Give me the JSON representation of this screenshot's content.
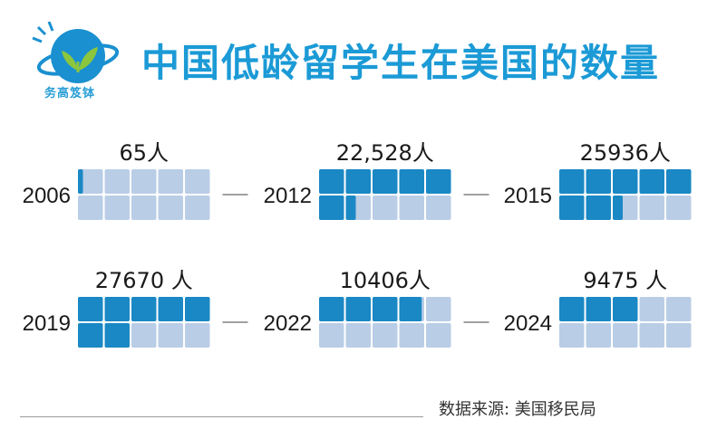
{
  "header": {
    "title": "中国低龄留学生在美国的数量",
    "logo_text": "务高笈钵"
  },
  "colors": {
    "filled": "#1a88c4",
    "empty": "#b9cde6",
    "title": "#1b9ad6",
    "connector": "#a0a0a0"
  },
  "source": "数据来源: 美国移民局",
  "chart_data": {
    "type": "waffle",
    "title": "中国低龄留学生在美国的数量",
    "grid": "2x5",
    "xlabel": "",
    "ylabel": "",
    "categories": [
      "2006",
      "2012",
      "2015",
      "2019",
      "2022",
      "2024"
    ],
    "value_labels": [
      "65人",
      "22,528人",
      "25936人",
      "27670 人",
      "10406人",
      "9475 人"
    ],
    "values": [
      65,
      22528,
      25936,
      27670,
      10406,
      9475
    ],
    "fill_cells": [
      0.2,
      6.4,
      7.4,
      7.0,
      3.9,
      3.0
    ]
  }
}
